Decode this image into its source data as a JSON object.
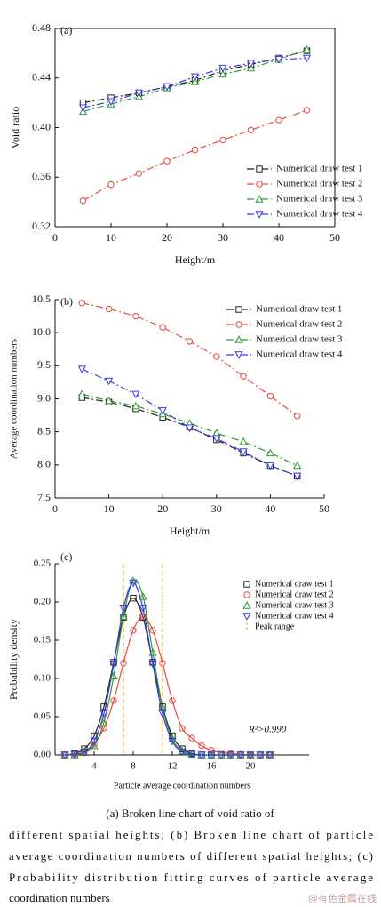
{
  "chart_data": [
    {
      "type": "line",
      "panel_label": "(a)",
      "x_label": "Height/m",
      "y_label": "Void ratio",
      "x": [
        5,
        10,
        15,
        20,
        25,
        30,
        35,
        40,
        45
      ],
      "xlim": [
        0,
        50
      ],
      "xticks": [
        0,
        10,
        20,
        30,
        40,
        50
      ],
      "ylim": [
        0.32,
        0.48
      ],
      "yticks": [
        0.32,
        0.36,
        {
          "value": 0.4,
          "label": "0.40"
        },
        0.44,
        0.48
      ],
      "frame": true,
      "line_style": "dash-dot",
      "legend": "lower right",
      "series": [
        {
          "name": "Numerical draw test 1",
          "color": "#222222",
          "marker": "square",
          "values": [
            0.42,
            0.424,
            0.428,
            0.433,
            0.438,
            0.446,
            0.451,
            0.456,
            0.462
          ]
        },
        {
          "name": "Numerical draw test 2",
          "color": "#e8493f",
          "marker": "circle",
          "values": [
            0.341,
            0.354,
            0.363,
            0.373,
            0.382,
            0.39,
            0.398,
            0.406,
            0.414
          ]
        },
        {
          "name": "Numerical draw test 3",
          "color": "#2f9a35",
          "marker": "triangle",
          "values": [
            0.413,
            0.419,
            0.425,
            0.432,
            0.437,
            0.443,
            0.448,
            0.455,
            0.463
          ]
        },
        {
          "name": "Numerical draw test 4",
          "color": "#3a3aeb",
          "marker": "triangle-down",
          "values": [
            0.416,
            0.421,
            0.428,
            0.433,
            0.441,
            0.448,
            0.452,
            0.455,
            0.456
          ]
        }
      ]
    },
    {
      "type": "line",
      "panel_label": "(b)",
      "x_label": "Height/m",
      "y_label": "Average coordination numbers",
      "x": [
        5,
        10,
        15,
        20,
        25,
        30,
        35,
        40,
        45
      ],
      "xlim": [
        0,
        50
      ],
      "xticks": [
        0,
        10,
        20,
        30,
        40,
        50
      ],
      "ylim": [
        7.5,
        10.5
      ],
      "yticks": [
        7.5,
        {
          "value": 8,
          "label": "8.0"
        },
        8.5,
        {
          "value": 9,
          "label": "9.0"
        },
        9.5,
        {
          "value": 10,
          "label": "10.0"
        },
        10.5
      ],
      "frame": false,
      "line_style": "dash-dot",
      "legend": "upper right",
      "series": [
        {
          "name": "Numerical draw test 1",
          "color": "#222222",
          "marker": "square",
          "values": [
            9.02,
            8.95,
            8.85,
            8.72,
            8.57,
            8.38,
            8.18,
            7.99,
            7.83
          ]
        },
        {
          "name": "Numerical draw test 2",
          "color": "#e8493f",
          "marker": "circle",
          "values": [
            10.45,
            10.36,
            10.25,
            10.08,
            9.87,
            9.64,
            9.34,
            9.04,
            8.74
          ]
        },
        {
          "name": "Numerical draw test 3",
          "color": "#2f9a35",
          "marker": "triangle",
          "values": [
            9.07,
            8.97,
            8.89,
            8.77,
            8.63,
            8.48,
            8.35,
            8.18,
            7.99
          ]
        },
        {
          "name": "Numerical draw test 4",
          "color": "#3a3aeb",
          "marker": "triangle-down",
          "values": [
            9.45,
            9.27,
            9.07,
            8.82,
            8.56,
            8.4,
            8.2,
            7.99,
            7.83
          ]
        }
      ]
    },
    {
      "type": "scatter",
      "panel_label": "(c)",
      "x_label": "Particle average coordination numbers",
      "y_label": "Probability density",
      "annotation": "R²>0.990",
      "x": [
        1,
        2,
        3,
        4,
        5,
        6,
        7,
        8,
        9,
        10,
        11,
        12,
        13,
        14,
        15,
        16,
        17,
        18,
        19,
        20,
        21,
        22
      ],
      "xlim": [
        0,
        26
      ],
      "xticks": [
        4,
        8,
        12,
        16,
        20
      ],
      "ylim": [
        0,
        0.25
      ],
      "yticks": [
        {
          "value": 0,
          "label": "0.00"
        },
        0.05,
        {
          "value": 0.1,
          "label": "0.10"
        },
        0.15,
        {
          "value": 0.2,
          "label": "0.20"
        },
        0.25
      ],
      "frame": false,
      "fit_curve": "smooth",
      "legend": "upper right",
      "series": [
        {
          "name": "Numerical draw test 1",
          "color": "#222222",
          "marker": "square",
          "values": [
            0.0,
            0.002,
            0.008,
            0.025,
            0.063,
            0.121,
            0.18,
            0.205,
            0.18,
            0.121,
            0.063,
            0.025,
            0.008,
            0.002,
            0,
            0,
            0,
            0,
            0,
            0,
            0,
            0
          ]
        },
        {
          "name": "Numerical draw test 2",
          "color": "#e8493f",
          "marker": "circle",
          "values": [
            0.0,
            0.001,
            0.004,
            0.014,
            0.035,
            0.071,
            0.12,
            0.163,
            0.181,
            0.163,
            0.12,
            0.071,
            0.035,
            0.022,
            0.012,
            0.006,
            0.003,
            0.002,
            0.001,
            0,
            0,
            0
          ]
        },
        {
          "name": "Numerical draw test 3",
          "color": "#2f9a35",
          "marker": "triangle",
          "values": [
            0,
            0.0,
            0.003,
            0.012,
            0.042,
            0.103,
            0.181,
            0.228,
            0.207,
            0.134,
            0.062,
            0.021,
            0.005,
            0.001,
            0,
            0,
            0,
            0,
            0,
            0,
            0,
            0
          ]
        },
        {
          "name": "Numerical draw test 4",
          "color": "#3a3aeb",
          "marker": "triangle-down",
          "values": [
            0,
            0.001,
            0.004,
            0.018,
            0.054,
            0.119,
            0.192,
            0.225,
            0.192,
            0.119,
            0.054,
            0.018,
            0.004,
            0.001,
            0,
            0,
            0,
            0,
            0,
            0,
            0,
            0
          ]
        }
      ],
      "peak_range": {
        "name": "Peak range",
        "color": "#e8a317",
        "values": [
          7,
          11
        ]
      }
    }
  ],
  "caption": [
    "(a) Broken line chart of void ratio of",
    "different spatial heights; (b) Broken line chart of particle",
    "average coordination numbers of different spatial heights; (c)",
    "Probability distribution fitting curves of particle average",
    "coordination numbers"
  ],
  "watermark": "@有色金属在线"
}
